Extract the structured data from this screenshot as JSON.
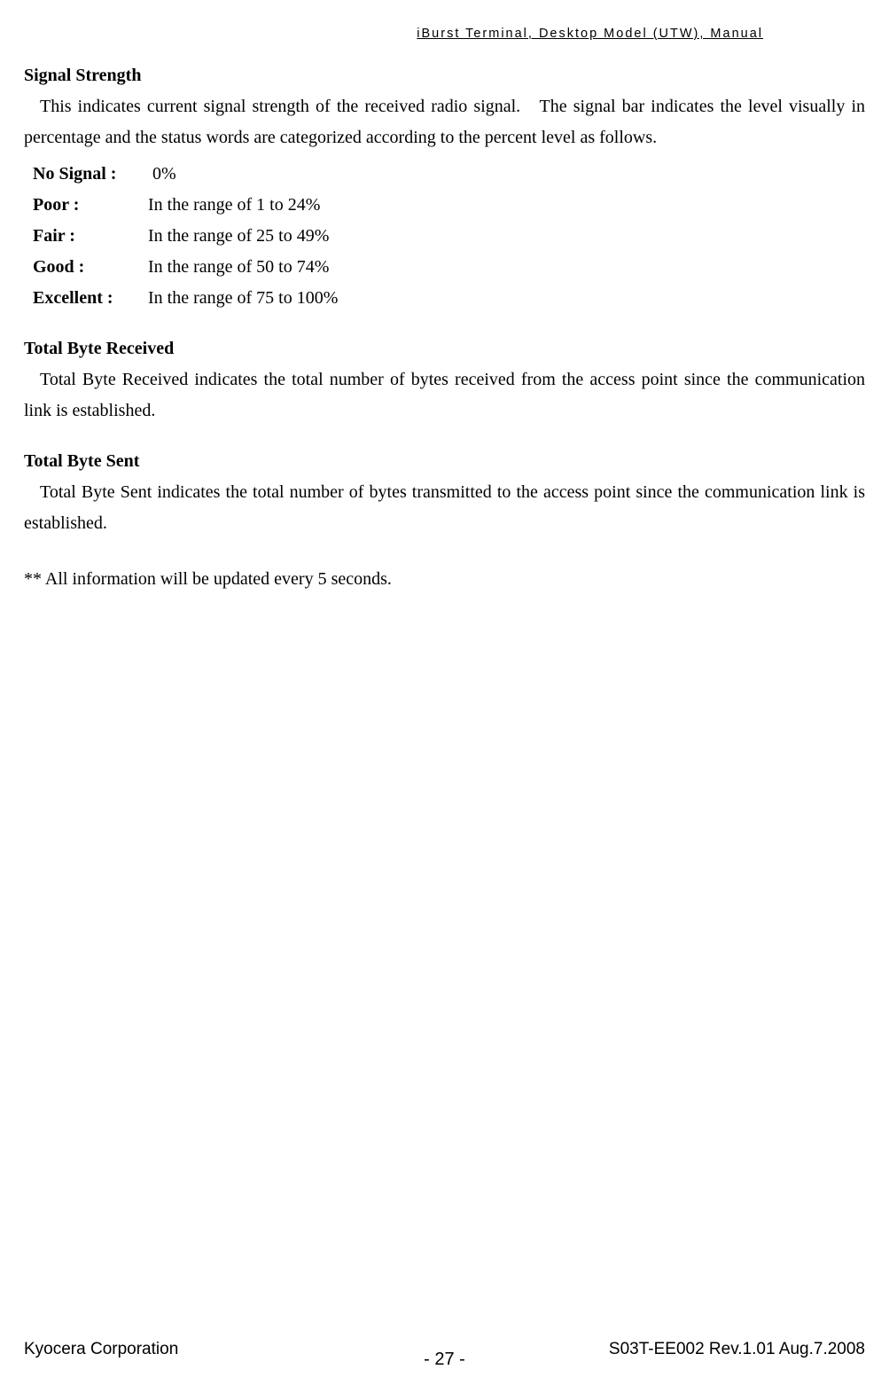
{
  "header": {
    "title": "iBurst Terminal, Desktop Model (UTW), Manual"
  },
  "sections": {
    "signal_strength": {
      "heading": "Signal Strength",
      "paragraph": "This indicates current signal strength of the received radio signal.   The signal bar indicates the level visually in percentage and the status words are categorized according to the percent level as follows.",
      "ranges": [
        {
          "label": "No Signal :",
          "value": " 0%"
        },
        {
          "label": "Poor :",
          "value": "In the range of 1 to 24%"
        },
        {
          "label": "Fair :",
          "value": "In the range of 25 to 49%"
        },
        {
          "label": "Good :",
          "value": "In the range of 50 to 74%"
        },
        {
          "label": "Excellent :",
          "value": "In the range of 75 to 100%"
        }
      ]
    },
    "total_received": {
      "heading": "Total Byte Received",
      "paragraph": "Total Byte Received indicates the total number of bytes received from the access point since the communication link is established."
    },
    "total_sent": {
      "heading": "Total Byte Sent",
      "paragraph": "Total Byte Sent indicates the total number of bytes transmitted to the access point since the communication link is established."
    },
    "note": "** All information will be updated every 5 seconds."
  },
  "footer": {
    "left": "Kyocera Corporation",
    "center": "- 27 -",
    "right": "S03T-EE002 Rev.1.01 Aug.7.2008"
  }
}
